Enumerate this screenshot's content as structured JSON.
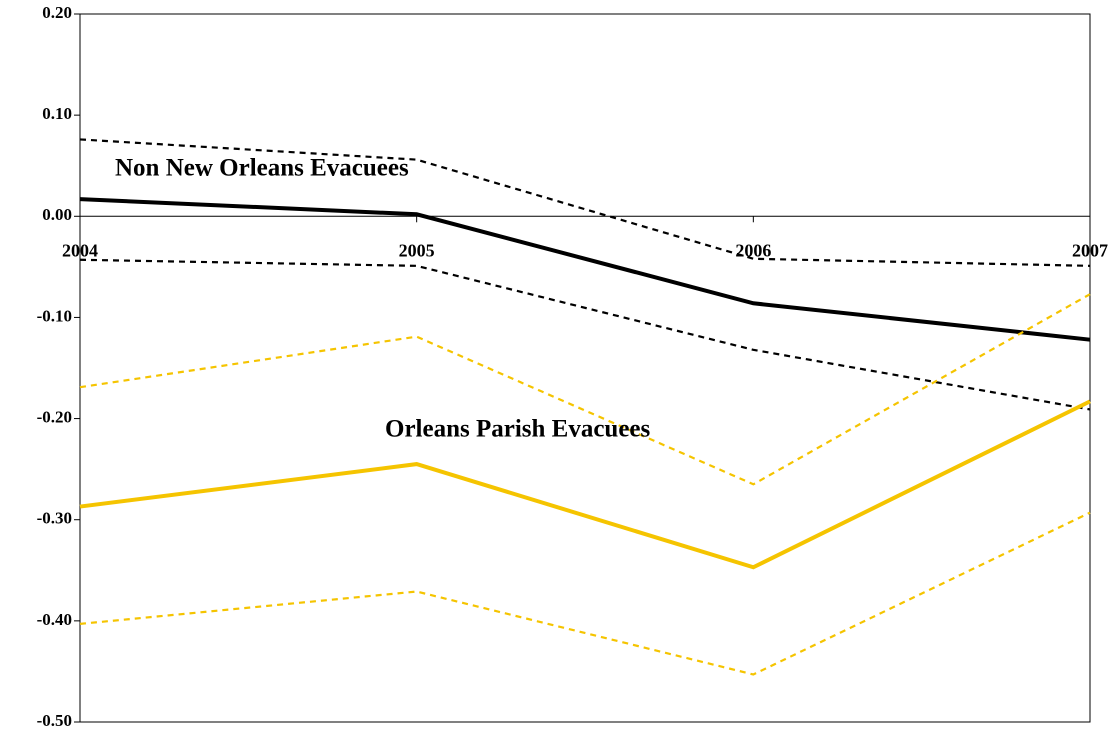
{
  "chart_data": {
    "type": "line",
    "categories": [
      "2004",
      "2005",
      "2006",
      "2007"
    ],
    "series": [
      {
        "color": "#000000",
        "dashed": false,
        "values": [
          0.017,
          0.002,
          -0.086,
          -0.122
        ]
      },
      {
        "color": "#000000",
        "dashed": true,
        "values": [
          0.076,
          0.056,
          -0.042,
          -0.049
        ]
      },
      {
        "color": "#000000",
        "dashed": true,
        "values": [
          -0.043,
          -0.049,
          -0.132,
          -0.191
        ]
      },
      {
        "color": "#f5c400",
        "dashed": false,
        "values": [
          -0.287,
          -0.245,
          -0.347,
          -0.183
        ]
      },
      {
        "color": "#f5c400",
        "dashed": true,
        "values": [
          -0.169,
          -0.119,
          -0.265,
          -0.077
        ]
      },
      {
        "color": "#f5c400",
        "dashed": true,
        "values": [
          -0.403,
          -0.371,
          -0.453,
          -0.293
        ]
      }
    ],
    "annotations": [
      "Non New Orleans Evacuees",
      "Orleans Parish Evacuees"
    ],
    "ylim": [
      -0.5,
      0.2
    ],
    "yticks": [
      {
        "value": -0.5,
        "label": "-0.50"
      },
      {
        "value": -0.4,
        "label": "-0.40"
      },
      {
        "value": -0.3,
        "label": "-0.30"
      },
      {
        "value": -0.2,
        "label": "-0.20"
      },
      {
        "value": -0.1,
        "label": "-0.10"
      },
      {
        "value": 0,
        "label": "0.00"
      },
      {
        "value": 0.1,
        "label": "0.10"
      },
      {
        "value": 0.2,
        "label": "0.20"
      }
    ],
    "grid": false
  }
}
